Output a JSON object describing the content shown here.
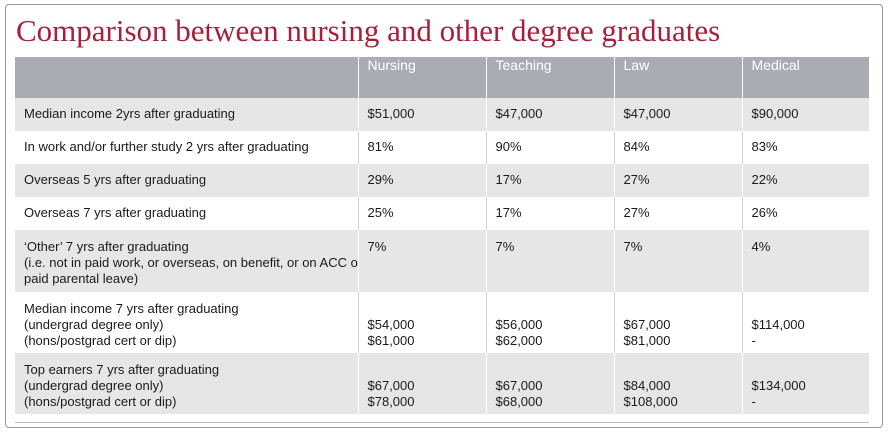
{
  "title": "Comparison between nursing and other degree graduates",
  "columns": [
    "",
    "Nursing",
    "Teaching",
    "Law",
    "Medical"
  ],
  "rows": [
    {
      "label": [
        "Median income 2yrs after graduating"
      ],
      "values": [
        [
          "$51,000"
        ],
        [
          "$47,000"
        ],
        [
          "$47,000"
        ],
        [
          "$90,000"
        ]
      ]
    },
    {
      "label": [
        "In work and/or further study 2 yrs after graduating"
      ],
      "values": [
        [
          "81%"
        ],
        [
          "90%"
        ],
        [
          "84%"
        ],
        [
          "83%"
        ]
      ]
    },
    {
      "label": [
        "Overseas 5 yrs after graduating"
      ],
      "values": [
        [
          "29%"
        ],
        [
          "17%"
        ],
        [
          "27%"
        ],
        [
          "22%"
        ]
      ]
    },
    {
      "label": [
        "Overseas 7 yrs after graduating"
      ],
      "values": [
        [
          "25%"
        ],
        [
          "17%"
        ],
        [
          "27%"
        ],
        [
          "26%"
        ]
      ]
    },
    {
      "label": [
        "‘Other’ 7 yrs after graduating",
        "(i.e. not in paid work, or overseas, on benefit, or on ACC or",
        "paid parental leave)"
      ],
      "values": [
        [
          "7%"
        ],
        [
          "7%"
        ],
        [
          "7%"
        ],
        [
          "4%"
        ]
      ]
    },
    {
      "label": [
        "Median income 7 yrs after graduating",
        "(undergrad degree only)",
        "(hons/postgrad cert or dip)"
      ],
      "values": [
        [
          "$54,000",
          "$61,000"
        ],
        [
          "$56,000",
          "$62,000"
        ],
        [
          "$67,000",
          "$81,000"
        ],
        [
          "$114,000",
          "-"
        ]
      ]
    },
    {
      "label": [
        "Top earners 7 yrs after graduating",
        "(undergrad degree only)",
        "(hons/postgrad cert or dip)"
      ],
      "values": [
        [
          "$67,000",
          "$78,000"
        ],
        [
          "$67,000",
          "$68,000"
        ],
        [
          "$84,000",
          "$108,000"
        ],
        [
          "$134,000",
          "-"
        ]
      ]
    }
  ]
}
